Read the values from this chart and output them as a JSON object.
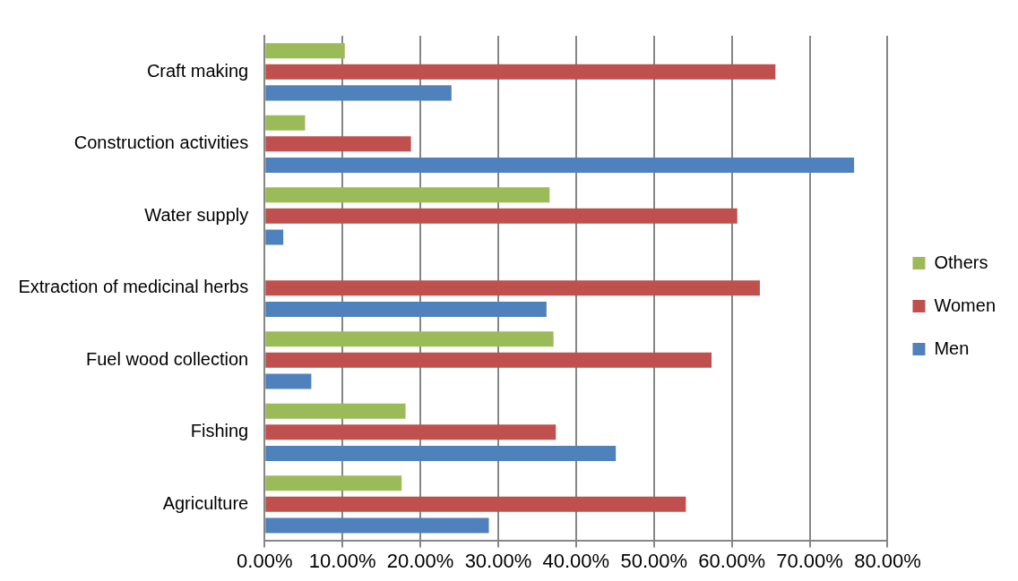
{
  "chart_data": {
    "type": "bar",
    "orientation": "horizontal",
    "categories": [
      "Craft making",
      "Construction activities",
      "Water supply",
      "Extraction of medicinal herbs",
      "Fuel wood collection",
      "Fishing",
      "Agriculture"
    ],
    "series": [
      {
        "name": "Others",
        "color": "#9bbb59",
        "values": [
          10.3,
          5.2,
          36.6,
          null,
          37.1,
          18.1,
          17.6
        ]
      },
      {
        "name": "Women",
        "color": "#c0504d",
        "values": [
          65.6,
          18.8,
          60.7,
          63.6,
          57.4,
          37.4,
          54.1
        ]
      },
      {
        "name": "Men",
        "color": "#4f81bd",
        "values": [
          24.0,
          75.7,
          2.4,
          36.2,
          6.0,
          45.1,
          28.8
        ]
      }
    ],
    "xlim": [
      0,
      80
    ],
    "xticks": [
      {
        "value": 0,
        "label": "0.00%"
      },
      {
        "value": 10,
        "label": "10.00%"
      },
      {
        "value": 20,
        "label": "20.00%"
      },
      {
        "value": 30,
        "label": "30.00%"
      },
      {
        "value": 40,
        "label": "40.00%"
      },
      {
        "value": 50,
        "label": "50.00%"
      },
      {
        "value": 60,
        "label": "60.00%"
      },
      {
        "value": 70,
        "label": "70.00%"
      },
      {
        "value": 80,
        "label": "80.00%"
      }
    ],
    "grid": "x",
    "legend": "right"
  }
}
